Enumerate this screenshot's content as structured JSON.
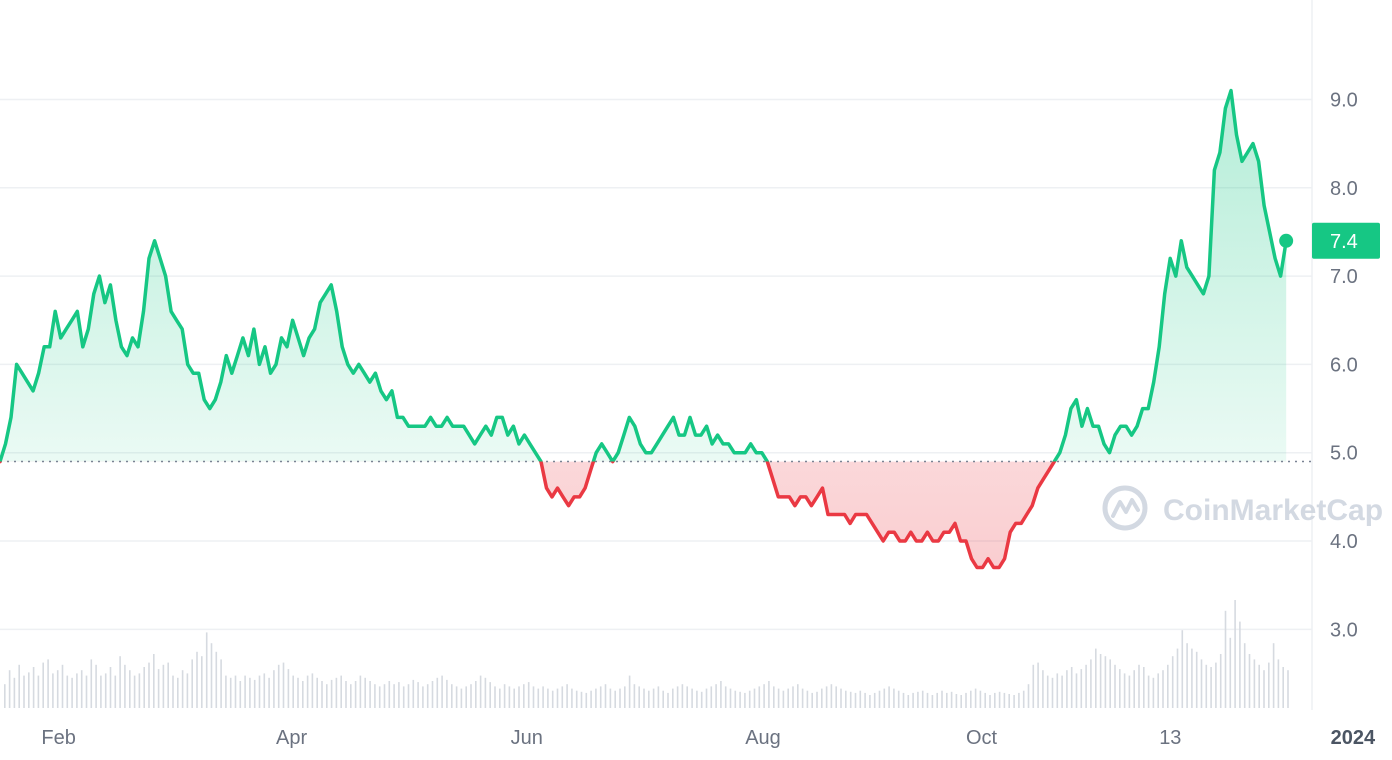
{
  "chart_data": {
    "type": "line",
    "ylim": [
      2.2,
      9.9
    ],
    "baseline": 4.9,
    "y_ticks": [
      "3.0",
      "4.0",
      "5.0",
      "6.0",
      "7.0",
      "8.0",
      "9.0"
    ],
    "x_ticks": [
      {
        "label": "Feb",
        "x": 0.03,
        "bold": false
      },
      {
        "label": "Apr",
        "x": 0.2,
        "bold": false
      },
      {
        "label": "Jun",
        "x": 0.37,
        "bold": false
      },
      {
        "label": "Aug",
        "x": 0.54,
        "bold": false
      },
      {
        "label": "Oct",
        "x": 0.7,
        "bold": false
      },
      {
        "label": "13",
        "x": 0.84,
        "bold": false
      },
      {
        "label": "2024",
        "x": 0.97,
        "bold": true
      }
    ],
    "current_value": "7.4",
    "colors": {
      "up": "#16c784",
      "down": "#ea3943",
      "badge": "#16c784"
    },
    "watermark": "CoinMarketCap",
    "series": [
      {
        "x": 0.0,
        "y": 4.9
      },
      {
        "x": 0.004,
        "y": 5.1
      },
      {
        "x": 0.008,
        "y": 5.4
      },
      {
        "x": 0.012,
        "y": 6.0
      },
      {
        "x": 0.016,
        "y": 5.9
      },
      {
        "x": 0.02,
        "y": 5.8
      },
      {
        "x": 0.024,
        "y": 5.7
      },
      {
        "x": 0.028,
        "y": 5.9
      },
      {
        "x": 0.032,
        "y": 6.2
      },
      {
        "x": 0.036,
        "y": 6.2
      },
      {
        "x": 0.04,
        "y": 6.6
      },
      {
        "x": 0.044,
        "y": 6.3
      },
      {
        "x": 0.048,
        "y": 6.4
      },
      {
        "x": 0.052,
        "y": 6.5
      },
      {
        "x": 0.056,
        "y": 6.6
      },
      {
        "x": 0.06,
        "y": 6.2
      },
      {
        "x": 0.064,
        "y": 6.4
      },
      {
        "x": 0.068,
        "y": 6.8
      },
      {
        "x": 0.072,
        "y": 7.0
      },
      {
        "x": 0.076,
        "y": 6.7
      },
      {
        "x": 0.08,
        "y": 6.9
      },
      {
        "x": 0.084,
        "y": 6.5
      },
      {
        "x": 0.088,
        "y": 6.2
      },
      {
        "x": 0.092,
        "y": 6.1
      },
      {
        "x": 0.096,
        "y": 6.3
      },
      {
        "x": 0.1,
        "y": 6.2
      },
      {
        "x": 0.104,
        "y": 6.6
      },
      {
        "x": 0.108,
        "y": 7.2
      },
      {
        "x": 0.112,
        "y": 7.4
      },
      {
        "x": 0.116,
        "y": 7.2
      },
      {
        "x": 0.12,
        "y": 7.0
      },
      {
        "x": 0.124,
        "y": 6.6
      },
      {
        "x": 0.128,
        "y": 6.5
      },
      {
        "x": 0.132,
        "y": 6.4
      },
      {
        "x": 0.136,
        "y": 6.0
      },
      {
        "x": 0.14,
        "y": 5.9
      },
      {
        "x": 0.144,
        "y": 5.9
      },
      {
        "x": 0.148,
        "y": 5.6
      },
      {
        "x": 0.152,
        "y": 5.5
      },
      {
        "x": 0.156,
        "y": 5.6
      },
      {
        "x": 0.16,
        "y": 5.8
      },
      {
        "x": 0.164,
        "y": 6.1
      },
      {
        "x": 0.168,
        "y": 5.9
      },
      {
        "x": 0.172,
        "y": 6.1
      },
      {
        "x": 0.176,
        "y": 6.3
      },
      {
        "x": 0.18,
        "y": 6.1
      },
      {
        "x": 0.184,
        "y": 6.4
      },
      {
        "x": 0.188,
        "y": 6.0
      },
      {
        "x": 0.192,
        "y": 6.2
      },
      {
        "x": 0.196,
        "y": 5.9
      },
      {
        "x": 0.2,
        "y": 6.0
      },
      {
        "x": 0.204,
        "y": 6.3
      },
      {
        "x": 0.208,
        "y": 6.2
      },
      {
        "x": 0.212,
        "y": 6.5
      },
      {
        "x": 0.216,
        "y": 6.3
      },
      {
        "x": 0.22,
        "y": 6.1
      },
      {
        "x": 0.224,
        "y": 6.3
      },
      {
        "x": 0.228,
        "y": 6.4
      },
      {
        "x": 0.232,
        "y": 6.7
      },
      {
        "x": 0.236,
        "y": 6.8
      },
      {
        "x": 0.24,
        "y": 6.9
      },
      {
        "x": 0.244,
        "y": 6.6
      },
      {
        "x": 0.248,
        "y": 6.2
      },
      {
        "x": 0.252,
        "y": 6.0
      },
      {
        "x": 0.256,
        "y": 5.9
      },
      {
        "x": 0.26,
        "y": 6.0
      },
      {
        "x": 0.264,
        "y": 5.9
      },
      {
        "x": 0.268,
        "y": 5.8
      },
      {
        "x": 0.272,
        "y": 5.9
      },
      {
        "x": 0.276,
        "y": 5.7
      },
      {
        "x": 0.28,
        "y": 5.6
      },
      {
        "x": 0.284,
        "y": 5.7
      },
      {
        "x": 0.288,
        "y": 5.4
      },
      {
        "x": 0.292,
        "y": 5.4
      },
      {
        "x": 0.296,
        "y": 5.3
      },
      {
        "x": 0.3,
        "y": 5.3
      },
      {
        "x": 0.304,
        "y": 5.3
      },
      {
        "x": 0.308,
        "y": 5.3
      },
      {
        "x": 0.312,
        "y": 5.4
      },
      {
        "x": 0.316,
        "y": 5.3
      },
      {
        "x": 0.32,
        "y": 5.3
      },
      {
        "x": 0.324,
        "y": 5.4
      },
      {
        "x": 0.328,
        "y": 5.3
      },
      {
        "x": 0.332,
        "y": 5.3
      },
      {
        "x": 0.336,
        "y": 5.3
      },
      {
        "x": 0.34,
        "y": 5.2
      },
      {
        "x": 0.344,
        "y": 5.1
      },
      {
        "x": 0.348,
        "y": 5.2
      },
      {
        "x": 0.352,
        "y": 5.3
      },
      {
        "x": 0.356,
        "y": 5.2
      },
      {
        "x": 0.36,
        "y": 5.4
      },
      {
        "x": 0.364,
        "y": 5.4
      },
      {
        "x": 0.368,
        "y": 5.2
      },
      {
        "x": 0.372,
        "y": 5.3
      },
      {
        "x": 0.376,
        "y": 5.1
      },
      {
        "x": 0.38,
        "y": 5.2
      },
      {
        "x": 0.384,
        "y": 5.1
      },
      {
        "x": 0.388,
        "y": 5.0
      },
      {
        "x": 0.392,
        "y": 4.9
      },
      {
        "x": 0.396,
        "y": 4.6
      },
      {
        "x": 0.4,
        "y": 4.5
      },
      {
        "x": 0.404,
        "y": 4.6
      },
      {
        "x": 0.408,
        "y": 4.5
      },
      {
        "x": 0.412,
        "y": 4.4
      },
      {
        "x": 0.416,
        "y": 4.5
      },
      {
        "x": 0.42,
        "y": 4.5
      },
      {
        "x": 0.424,
        "y": 4.6
      },
      {
        "x": 0.428,
        "y": 4.8
      },
      {
        "x": 0.432,
        "y": 5.0
      },
      {
        "x": 0.436,
        "y": 5.1
      },
      {
        "x": 0.44,
        "y": 5.0
      },
      {
        "x": 0.444,
        "y": 4.9
      },
      {
        "x": 0.448,
        "y": 5.0
      },
      {
        "x": 0.452,
        "y": 5.2
      },
      {
        "x": 0.456,
        "y": 5.4
      },
      {
        "x": 0.46,
        "y": 5.3
      },
      {
        "x": 0.464,
        "y": 5.1
      },
      {
        "x": 0.468,
        "y": 5.0
      },
      {
        "x": 0.472,
        "y": 5.0
      },
      {
        "x": 0.476,
        "y": 5.1
      },
      {
        "x": 0.48,
        "y": 5.2
      },
      {
        "x": 0.484,
        "y": 5.3
      },
      {
        "x": 0.488,
        "y": 5.4
      },
      {
        "x": 0.492,
        "y": 5.2
      },
      {
        "x": 0.496,
        "y": 5.2
      },
      {
        "x": 0.5,
        "y": 5.4
      },
      {
        "x": 0.504,
        "y": 5.2
      },
      {
        "x": 0.508,
        "y": 5.2
      },
      {
        "x": 0.512,
        "y": 5.3
      },
      {
        "x": 0.516,
        "y": 5.1
      },
      {
        "x": 0.52,
        "y": 5.2
      },
      {
        "x": 0.524,
        "y": 5.1
      },
      {
        "x": 0.528,
        "y": 5.1
      },
      {
        "x": 0.532,
        "y": 5.0
      },
      {
        "x": 0.536,
        "y": 5.0
      },
      {
        "x": 0.54,
        "y": 5.0
      },
      {
        "x": 0.544,
        "y": 5.1
      },
      {
        "x": 0.548,
        "y": 5.0
      },
      {
        "x": 0.552,
        "y": 5.0
      },
      {
        "x": 0.556,
        "y": 4.9
      },
      {
        "x": 0.56,
        "y": 4.7
      },
      {
        "x": 0.564,
        "y": 4.5
      },
      {
        "x": 0.568,
        "y": 4.5
      },
      {
        "x": 0.572,
        "y": 4.5
      },
      {
        "x": 0.576,
        "y": 4.4
      },
      {
        "x": 0.58,
        "y": 4.5
      },
      {
        "x": 0.584,
        "y": 4.5
      },
      {
        "x": 0.588,
        "y": 4.4
      },
      {
        "x": 0.592,
        "y": 4.5
      },
      {
        "x": 0.596,
        "y": 4.6
      },
      {
        "x": 0.6,
        "y": 4.3
      },
      {
        "x": 0.604,
        "y": 4.3
      },
      {
        "x": 0.608,
        "y": 4.3
      },
      {
        "x": 0.612,
        "y": 4.3
      },
      {
        "x": 0.616,
        "y": 4.2
      },
      {
        "x": 0.62,
        "y": 4.3
      },
      {
        "x": 0.624,
        "y": 4.3
      },
      {
        "x": 0.628,
        "y": 4.3
      },
      {
        "x": 0.632,
        "y": 4.2
      },
      {
        "x": 0.636,
        "y": 4.1
      },
      {
        "x": 0.64,
        "y": 4.0
      },
      {
        "x": 0.644,
        "y": 4.1
      },
      {
        "x": 0.648,
        "y": 4.1
      },
      {
        "x": 0.652,
        "y": 4.0
      },
      {
        "x": 0.656,
        "y": 4.0
      },
      {
        "x": 0.66,
        "y": 4.1
      },
      {
        "x": 0.664,
        "y": 4.0
      },
      {
        "x": 0.668,
        "y": 4.0
      },
      {
        "x": 0.672,
        "y": 4.1
      },
      {
        "x": 0.676,
        "y": 4.0
      },
      {
        "x": 0.68,
        "y": 4.0
      },
      {
        "x": 0.684,
        "y": 4.1
      },
      {
        "x": 0.688,
        "y": 4.1
      },
      {
        "x": 0.692,
        "y": 4.2
      },
      {
        "x": 0.696,
        "y": 4.0
      },
      {
        "x": 0.7,
        "y": 4.0
      },
      {
        "x": 0.704,
        "y": 3.8
      },
      {
        "x": 0.708,
        "y": 3.7
      },
      {
        "x": 0.712,
        "y": 3.7
      },
      {
        "x": 0.716,
        "y": 3.8
      },
      {
        "x": 0.72,
        "y": 3.7
      },
      {
        "x": 0.724,
        "y": 3.7
      },
      {
        "x": 0.728,
        "y": 3.8
      },
      {
        "x": 0.732,
        "y": 4.1
      },
      {
        "x": 0.736,
        "y": 4.2
      },
      {
        "x": 0.74,
        "y": 4.2
      },
      {
        "x": 0.744,
        "y": 4.3
      },
      {
        "x": 0.748,
        "y": 4.4
      },
      {
        "x": 0.752,
        "y": 4.6
      },
      {
        "x": 0.756,
        "y": 4.7
      },
      {
        "x": 0.76,
        "y": 4.8
      },
      {
        "x": 0.764,
        "y": 4.9
      },
      {
        "x": 0.768,
        "y": 5.0
      },
      {
        "x": 0.772,
        "y": 5.2
      },
      {
        "x": 0.776,
        "y": 5.5
      },
      {
        "x": 0.78,
        "y": 5.6
      },
      {
        "x": 0.784,
        "y": 5.3
      },
      {
        "x": 0.788,
        "y": 5.5
      },
      {
        "x": 0.792,
        "y": 5.3
      },
      {
        "x": 0.796,
        "y": 5.3
      },
      {
        "x": 0.8,
        "y": 5.1
      },
      {
        "x": 0.804,
        "y": 5.0
      },
      {
        "x": 0.808,
        "y": 5.2
      },
      {
        "x": 0.812,
        "y": 5.3
      },
      {
        "x": 0.816,
        "y": 5.3
      },
      {
        "x": 0.82,
        "y": 5.2
      },
      {
        "x": 0.824,
        "y": 5.3
      },
      {
        "x": 0.828,
        "y": 5.5
      },
      {
        "x": 0.832,
        "y": 5.5
      },
      {
        "x": 0.836,
        "y": 5.8
      },
      {
        "x": 0.84,
        "y": 6.2
      },
      {
        "x": 0.844,
        "y": 6.8
      },
      {
        "x": 0.848,
        "y": 7.2
      },
      {
        "x": 0.852,
        "y": 7.0
      },
      {
        "x": 0.856,
        "y": 7.4
      },
      {
        "x": 0.86,
        "y": 7.1
      },
      {
        "x": 0.864,
        "y": 7.0
      },
      {
        "x": 0.868,
        "y": 6.9
      },
      {
        "x": 0.872,
        "y": 6.8
      },
      {
        "x": 0.876,
        "y": 7.0
      },
      {
        "x": 0.88,
        "y": 8.2
      },
      {
        "x": 0.884,
        "y": 8.4
      },
      {
        "x": 0.888,
        "y": 8.9
      },
      {
        "x": 0.892,
        "y": 9.1
      },
      {
        "x": 0.896,
        "y": 8.6
      },
      {
        "x": 0.9,
        "y": 8.3
      },
      {
        "x": 0.904,
        "y": 8.4
      },
      {
        "x": 0.908,
        "y": 8.5
      },
      {
        "x": 0.912,
        "y": 8.3
      },
      {
        "x": 0.916,
        "y": 7.8
      },
      {
        "x": 0.92,
        "y": 7.5
      },
      {
        "x": 0.924,
        "y": 7.2
      },
      {
        "x": 0.928,
        "y": 7.0
      },
      {
        "x": 0.932,
        "y": 7.4
      }
    ],
    "volume": [
      0.22,
      0.35,
      0.28,
      0.4,
      0.3,
      0.33,
      0.38,
      0.3,
      0.42,
      0.45,
      0.32,
      0.35,
      0.4,
      0.3,
      0.28,
      0.32,
      0.35,
      0.3,
      0.45,
      0.4,
      0.3,
      0.32,
      0.38,
      0.3,
      0.48,
      0.4,
      0.35,
      0.3,
      0.32,
      0.38,
      0.42,
      0.5,
      0.36,
      0.4,
      0.42,
      0.3,
      0.28,
      0.35,
      0.32,
      0.45,
      0.52,
      0.48,
      0.7,
      0.6,
      0.52,
      0.45,
      0.3,
      0.28,
      0.3,
      0.25,
      0.3,
      0.28,
      0.26,
      0.3,
      0.32,
      0.28,
      0.35,
      0.4,
      0.42,
      0.36,
      0.3,
      0.28,
      0.25,
      0.3,
      0.32,
      0.28,
      0.25,
      0.22,
      0.26,
      0.28,
      0.3,
      0.25,
      0.22,
      0.25,
      0.3,
      0.28,
      0.25,
      0.22,
      0.2,
      0.22,
      0.25,
      0.22,
      0.24,
      0.2,
      0.22,
      0.26,
      0.24,
      0.2,
      0.22,
      0.25,
      0.28,
      0.3,
      0.26,
      0.22,
      0.2,
      0.18,
      0.2,
      0.22,
      0.25,
      0.3,
      0.28,
      0.24,
      0.2,
      0.18,
      0.22,
      0.2,
      0.18,
      0.2,
      0.22,
      0.24,
      0.2,
      0.18,
      0.2,
      0.18,
      0.16,
      0.18,
      0.2,
      0.22,
      0.18,
      0.16,
      0.15,
      0.14,
      0.16,
      0.18,
      0.2,
      0.22,
      0.18,
      0.16,
      0.18,
      0.2,
      0.3,
      0.22,
      0.2,
      0.18,
      0.16,
      0.18,
      0.2,
      0.16,
      0.14,
      0.18,
      0.2,
      0.22,
      0.2,
      0.18,
      0.16,
      0.15,
      0.18,
      0.2,
      0.22,
      0.25,
      0.2,
      0.18,
      0.16,
      0.15,
      0.14,
      0.16,
      0.18,
      0.2,
      0.22,
      0.25,
      0.2,
      0.18,
      0.16,
      0.18,
      0.2,
      0.22,
      0.18,
      0.16,
      0.14,
      0.15,
      0.18,
      0.2,
      0.22,
      0.2,
      0.18,
      0.16,
      0.15,
      0.14,
      0.16,
      0.14,
      0.12,
      0.14,
      0.16,
      0.18,
      0.2,
      0.18,
      0.16,
      0.14,
      0.12,
      0.14,
      0.15,
      0.16,
      0.14,
      0.12,
      0.14,
      0.16,
      0.14,
      0.15,
      0.13,
      0.12,
      0.14,
      0.16,
      0.18,
      0.16,
      0.14,
      0.12,
      0.14,
      0.15,
      0.14,
      0.13,
      0.12,
      0.14,
      0.16,
      0.22,
      0.4,
      0.42,
      0.35,
      0.3,
      0.28,
      0.32,
      0.3,
      0.35,
      0.38,
      0.32,
      0.36,
      0.4,
      0.45,
      0.55,
      0.5,
      0.48,
      0.45,
      0.4,
      0.36,
      0.32,
      0.3,
      0.35,
      0.4,
      0.38,
      0.3,
      0.28,
      0.32,
      0.35,
      0.4,
      0.48,
      0.55,
      0.72,
      0.6,
      0.55,
      0.52,
      0.45,
      0.4,
      0.38,
      0.42,
      0.5,
      0.9,
      0.65,
      1.0,
      0.8,
      0.6,
      0.5,
      0.45,
      0.4,
      0.35,
      0.42,
      0.6,
      0.45,
      0.38,
      0.35
    ]
  }
}
